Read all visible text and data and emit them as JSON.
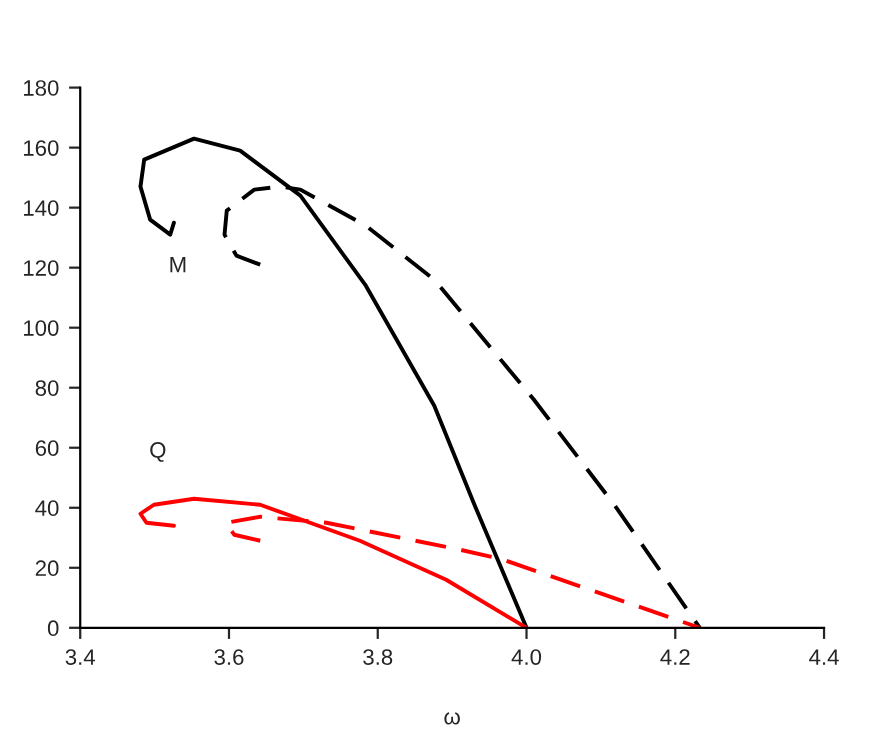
{
  "chart_data": {
    "type": "line",
    "xlabel": "ω",
    "xlim": [
      3.4,
      4.4
    ],
    "xticks": [
      {
        "value": 3.4,
        "label": "3.4"
      },
      {
        "value": 3.6,
        "label": "3.6"
      },
      {
        "value": 3.8,
        "label": "3.8"
      },
      {
        "value": 4.0,
        "label": "4.0"
      },
      {
        "value": 4.2,
        "label": "4.2"
      },
      {
        "value": 4.4,
        "label": "4.4"
      }
    ],
    "ylim": [
      0,
      180
    ],
    "yticks": [
      0,
      20,
      40,
      60,
      80,
      100,
      120,
      140,
      160,
      180
    ],
    "grid": false,
    "marker": "none",
    "annotations": [
      "M",
      "Q"
    ],
    "series": [
      {
        "color": "#000000",
        "line_style": "solid",
        "x": [
          3.526,
          3.521,
          3.494,
          3.481,
          3.486,
          3.553,
          3.615,
          3.696,
          3.784,
          3.876,
          3.93,
          4.0
        ],
        "values": [
          135,
          131,
          136,
          147,
          156,
          163,
          159,
          144,
          114,
          74,
          41,
          0
        ]
      },
      {
        "color": "#000000",
        "line_style": "dashed",
        "x": [
          3.642,
          3.61,
          3.594,
          3.597,
          3.634,
          3.669,
          3.696,
          3.784,
          3.876,
          4.01,
          4.118,
          4.233
        ],
        "values": [
          121,
          124,
          131,
          139,
          146,
          147,
          146,
          134,
          116,
          76,
          41,
          0
        ]
      },
      {
        "color": "#ff0000",
        "line_style": "solid",
        "x": [
          3.526,
          3.489,
          3.481,
          3.499,
          3.553,
          3.642,
          3.776,
          3.892,
          4.0
        ],
        "values": [
          34,
          35,
          38,
          41,
          43,
          41,
          29,
          16,
          0
        ]
      },
      {
        "color": "#ff0000",
        "line_style": "dashed",
        "x": [
          3.642,
          3.607,
          3.596,
          3.642,
          3.731,
          3.911,
          3.965,
          4.233
        ],
        "values": [
          29,
          31,
          35,
          37,
          35,
          26,
          23,
          0
        ]
      }
    ]
  }
}
